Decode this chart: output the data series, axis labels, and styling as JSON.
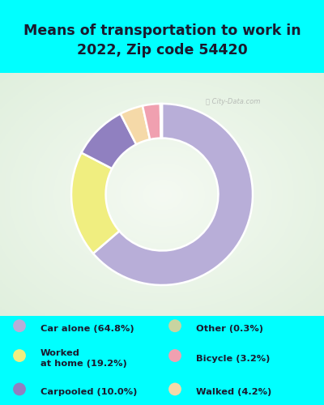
{
  "title": "Means of transportation to work in\n2022, Zip code 54420",
  "slices": [
    {
      "label": "Car alone (64.8%)",
      "value": 64.8,
      "color": "#b8aed8"
    },
    {
      "label": "Worked at home (19.2%)",
      "value": 19.2,
      "color": "#f0ee80"
    },
    {
      "label": "Carpooled (10.0%)",
      "value": 10.0,
      "color": "#9080c0"
    },
    {
      "label": "Walked (4.2%)",
      "value": 4.2,
      "color": "#f5d9a8"
    },
    {
      "label": "Bicycle (3.2%)",
      "value": 3.2,
      "color": "#f0a0b0"
    },
    {
      "label": "Other (0.3%)",
      "value": 0.3,
      "color": "#c8d4a0"
    }
  ],
  "legend_items": [
    {
      "label": "Car alone (64.8%)",
      "color": "#b8aed8"
    },
    {
      "label": "Worked\nat home (19.2%)",
      "color": "#f0ee80"
    },
    {
      "label": "Carpooled (10.0%)",
      "color": "#9080c0"
    },
    {
      "label": "Other (0.3%)",
      "color": "#c8d4a0"
    },
    {
      "label": "Bicycle (3.2%)",
      "color": "#f0a0b0"
    },
    {
      "label": "Walked (4.2%)",
      "color": "#f5d9a8"
    }
  ],
  "bg_color": "#00ffff",
  "title_color": "#1a1a2e",
  "title_fontsize": 12.5,
  "watermark": "City-Data.com",
  "donut_width": 0.38,
  "startangle": 90
}
